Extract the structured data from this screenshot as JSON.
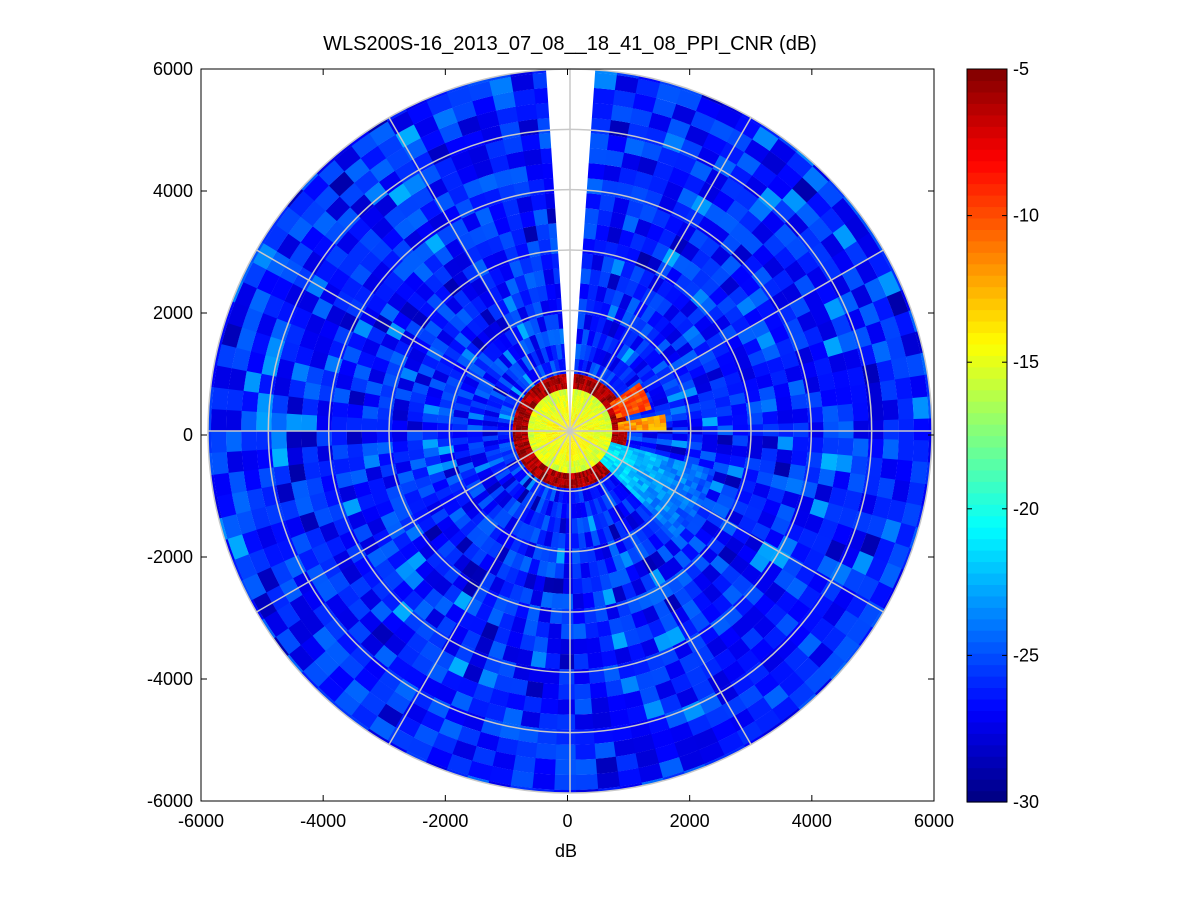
{
  "chart_data": {
    "type": "heatmap",
    "subtype": "polar-ppi",
    "title": "WLS200S-16_2013_07_08__18_41_08_PPI_CNR (dB)",
    "xlabel": "dB",
    "ylabel": "",
    "xlim": [
      -6000,
      6000
    ],
    "ylim": [
      -6000,
      6000
    ],
    "xticks": [
      -6000,
      -4000,
      -2000,
      0,
      2000,
      4000,
      6000
    ],
    "yticks": [
      -6000,
      -4000,
      -2000,
      0,
      2000,
      4000,
      6000
    ],
    "xtick_labels": [
      "-6000",
      "-4000",
      "-2000",
      "0",
      "2000",
      "4000",
      "6000"
    ],
    "ytick_labels": [
      "-6000",
      "-4000",
      "-2000",
      "0",
      "2000",
      "4000",
      "6000"
    ],
    "max_range": 6000,
    "range_rings": [
      1000,
      2000,
      3000,
      4000,
      5000,
      6000
    ],
    "spoke_angles_deg": [
      0,
      30,
      60,
      90,
      120,
      150,
      180,
      210,
      240,
      270,
      300,
      330
    ],
    "missing_sector_deg": [
      -4,
      4
    ],
    "colormap": "jet",
    "clim": [
      -30,
      -5
    ],
    "colorbar_ticks": [
      -5,
      -10,
      -15,
      -20,
      -25,
      -30
    ],
    "colorbar_tick_labels": [
      "-5",
      "-10",
      "-15",
      "-20",
      "-25",
      "-30"
    ],
    "features": [
      {
        "name": "near-field core",
        "range": [
          0,
          700
        ],
        "cnr_db": -14
      },
      {
        "name": "saturated ring",
        "range": [
          700,
          950
        ],
        "cnr_db": -6
      },
      {
        "name": "target NE",
        "azimuth_deg": [
          55,
          75
        ],
        "range": [
          800,
          1400
        ],
        "cnr_db": -10
      },
      {
        "name": "target E",
        "azimuth_deg": [
          80,
          90
        ],
        "range": [
          800,
          1600
        ],
        "cnr_db": -12
      },
      {
        "name": "plume SE",
        "azimuth_deg": [
          105,
          135
        ],
        "range": [
          700,
          2500
        ],
        "cnr_db": -21
      },
      {
        "name": "background",
        "range": [
          950,
          6000
        ],
        "cnr_db": -26
      }
    ]
  },
  "colors": {
    "background": "#ffffff",
    "axes": "#000000",
    "grid": "#c8c8c8"
  }
}
